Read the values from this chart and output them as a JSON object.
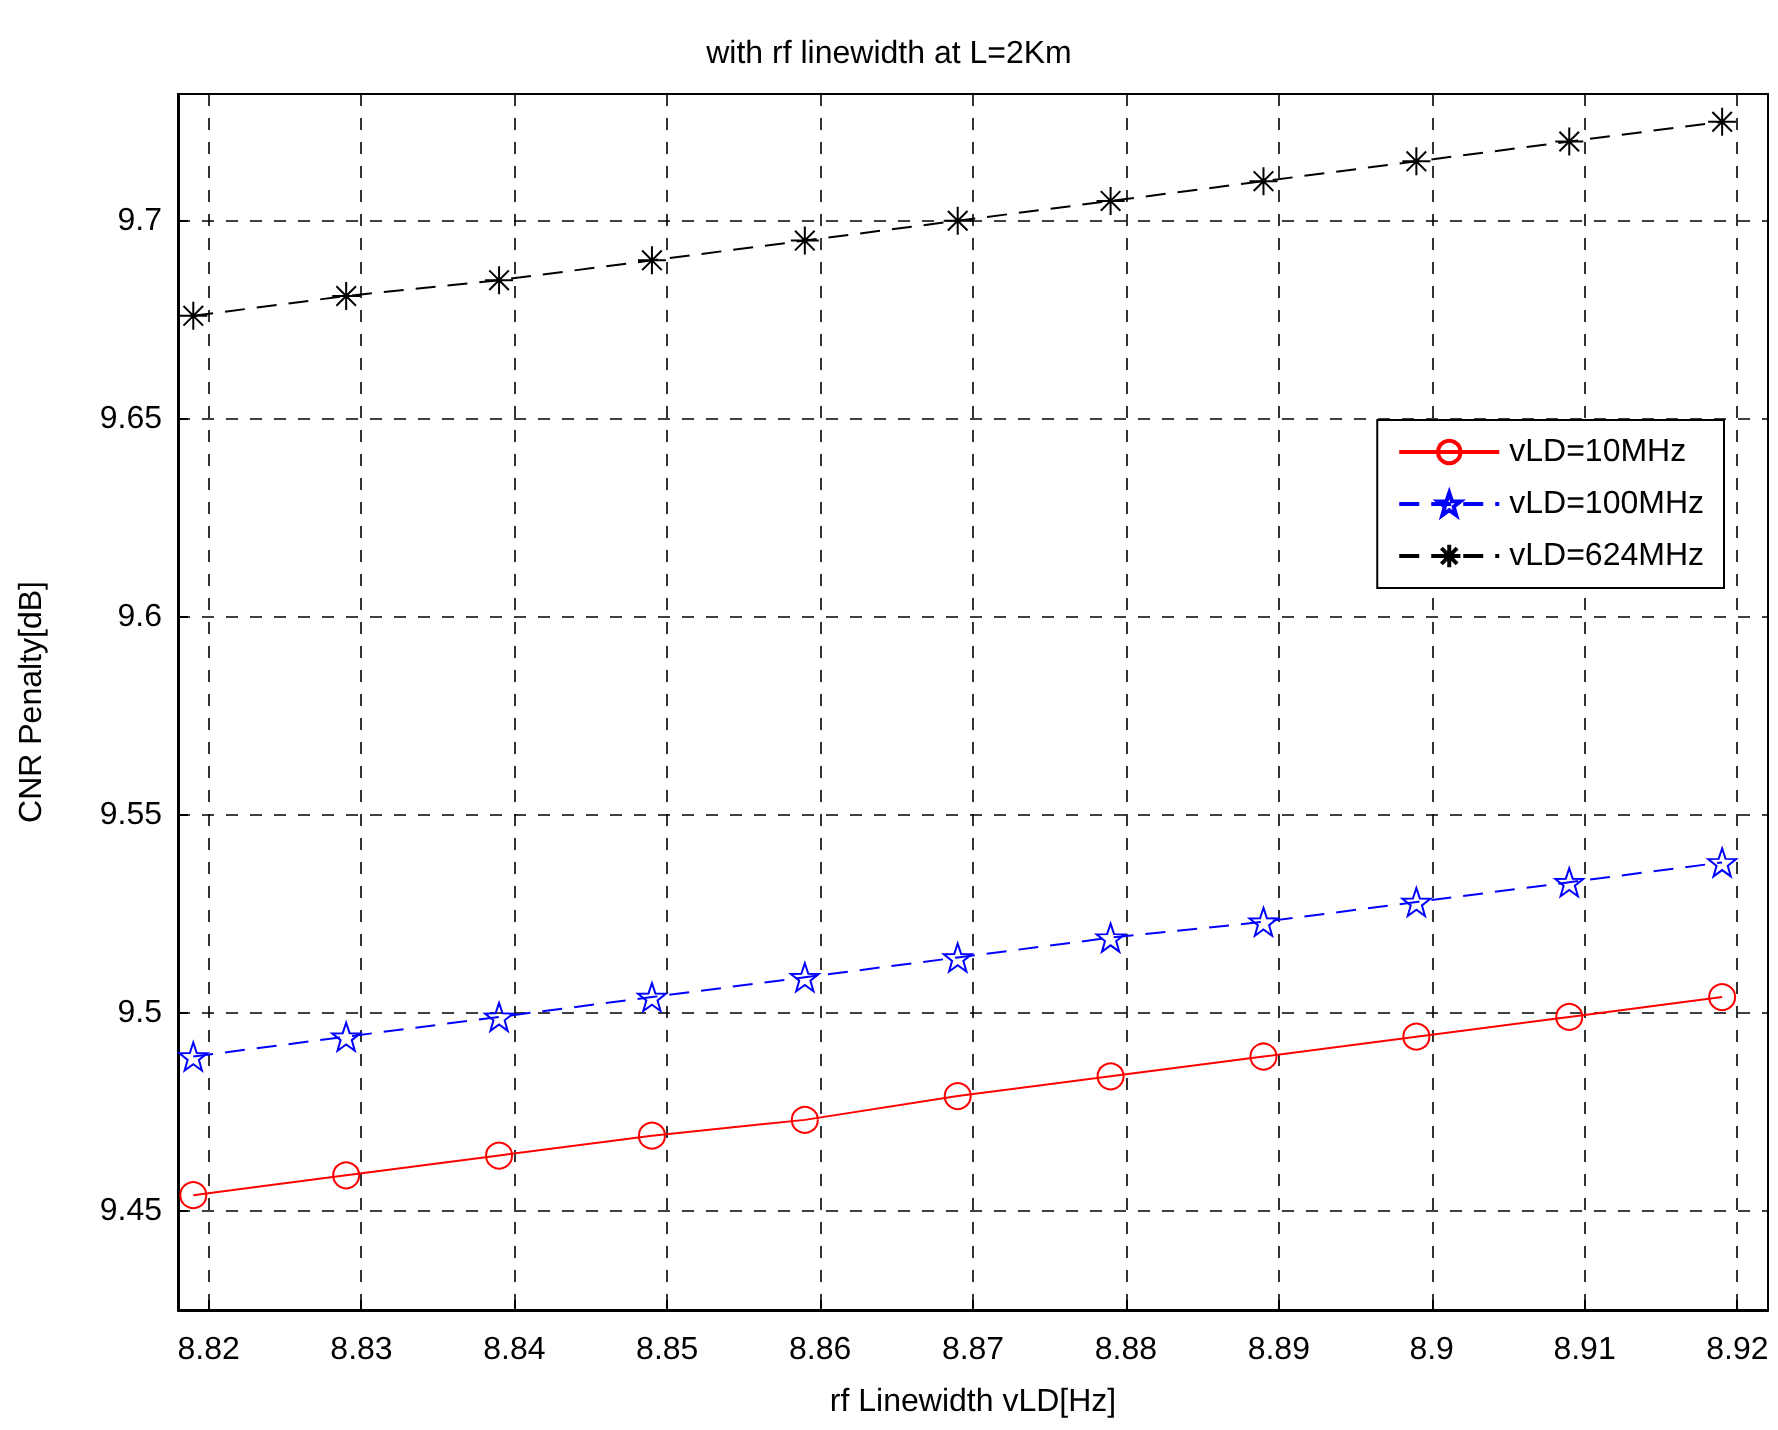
{
  "chart_data": {
    "type": "line",
    "title": "with rf linewidth at L=2Km",
    "xlabel": "rf Linewidth vLD[Hz]",
    "ylabel": "CNR Penalty[dB]",
    "x": [
      8.819,
      8.829,
      8.839,
      8.849,
      8.859,
      8.869,
      8.879,
      8.889,
      8.899,
      8.909,
      8.919
    ],
    "series": [
      {
        "name": "vLD=10MHz",
        "color": "#ff0000",
        "marker": "circle",
        "line_style": "solid",
        "values": [
          9.454,
          9.459,
          9.464,
          9.469,
          9.473,
          9.479,
          9.484,
          9.489,
          9.494,
          9.499,
          9.504
        ]
      },
      {
        "name": "vLD=100MHz",
        "color": "#0000ff",
        "marker": "star",
        "line_style": "dashed",
        "values": [
          9.489,
          9.494,
          9.499,
          9.504,
          9.509,
          9.514,
          9.519,
          9.523,
          9.528,
          9.533,
          9.538
        ]
      },
      {
        "name": "vLD=624MHz",
        "color": "#000000",
        "marker": "cross",
        "line_style": "dashed",
        "values": [
          9.676,
          9.681,
          9.685,
          9.69,
          9.695,
          9.7,
          9.705,
          9.71,
          9.715,
          9.72,
          9.725
        ]
      }
    ],
    "xlim": [
      8.818,
      8.922
    ],
    "xticks": [
      8.82,
      8.83,
      8.84,
      8.85,
      8.86,
      8.87,
      8.88,
      8.89,
      8.9,
      8.91,
      8.92
    ],
    "ylim": [
      9.425,
      9.732
    ],
    "yticks": [
      9.45,
      9.5,
      9.55,
      9.6,
      9.65,
      9.7
    ],
    "grid": true,
    "legend": "top right"
  }
}
